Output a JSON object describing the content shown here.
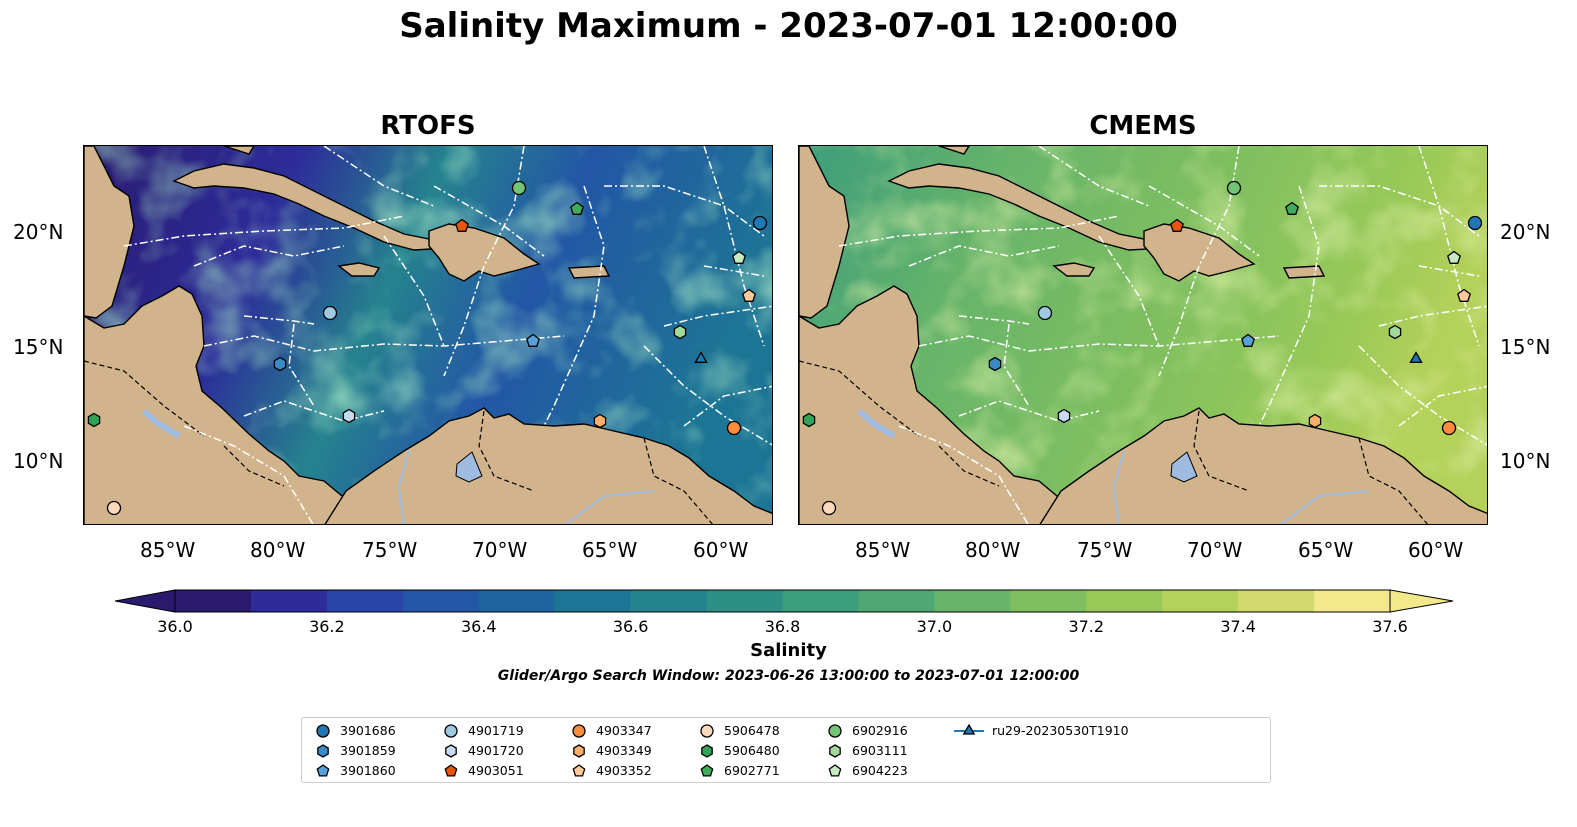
{
  "title": "Salinity Maximum - 2023-07-01 12:00:00",
  "panels": [
    {
      "title": "RTOFS",
      "variant": "rtofs"
    },
    {
      "title": "CMEMS",
      "variant": "cmems"
    }
  ],
  "lon_ticks": [
    "85°W",
    "80°W",
    "75°W",
    "70°W",
    "65°W",
    "60°W"
  ],
  "lat_ticks": [
    "20°N",
    "15°N",
    "10°N"
  ],
  "colorbar": {
    "label": "Salinity",
    "vmin": 36.0,
    "vmax": 37.6,
    "ticks": [
      "36.0",
      "36.2",
      "36.4",
      "36.6",
      "36.8",
      "37.0",
      "37.2",
      "37.4",
      "37.6"
    ],
    "colors": [
      "#2a1a6e",
      "#2d2c9a",
      "#2a45a8",
      "#2356a6",
      "#1e659f",
      "#1d7595",
      "#25838e",
      "#2e9085",
      "#3b9d7c",
      "#4fa873",
      "#67b46a",
      "#7fbf60",
      "#98c958",
      "#b4d15a",
      "#d2da6d",
      "#f3e98c"
    ]
  },
  "search_window": "Glider/Argo Search Window: 2023-06-26 13:00:00 to 2023-07-01 12:00:00",
  "legend": [
    {
      "label": "3901686",
      "marker": "circle",
      "color": "#1f77b4"
    },
    {
      "label": "3901859",
      "marker": "hexagon",
      "color": "#3a89c9"
    },
    {
      "label": "3901860",
      "marker": "pentagon",
      "color": "#5aa0d8"
    },
    {
      "label": "4901719",
      "marker": "circle",
      "color": "#9ecae1"
    },
    {
      "label": "4901720",
      "marker": "hexagon",
      "color": "#c6dbef"
    },
    {
      "label": "4903051",
      "marker": "pentagon",
      "color": "#e6550d"
    },
    {
      "label": "4903347",
      "marker": "circle",
      "color": "#fd8d3c"
    },
    {
      "label": "4903349",
      "marker": "hexagon",
      "color": "#fdae6b"
    },
    {
      "label": "4903352",
      "marker": "pentagon",
      "color": "#fdc89a"
    },
    {
      "label": "5906478",
      "marker": "circle",
      "color": "#fdd9bd"
    },
    {
      "label": "5906480",
      "marker": "hexagon",
      "color": "#31a354"
    },
    {
      "label": "6902771",
      "marker": "pentagon",
      "color": "#41ab5d"
    },
    {
      "label": "6902916",
      "marker": "circle",
      "color": "#74c476"
    },
    {
      "label": "6903111",
      "marker": "hexagon",
      "color": "#a1d99b"
    },
    {
      "label": "6904223",
      "marker": "pentagon",
      "color": "#c7e9c0"
    },
    {
      "label": "ru29-20230530T1910",
      "marker": "triangle",
      "color": "#1f77b4"
    }
  ]
}
